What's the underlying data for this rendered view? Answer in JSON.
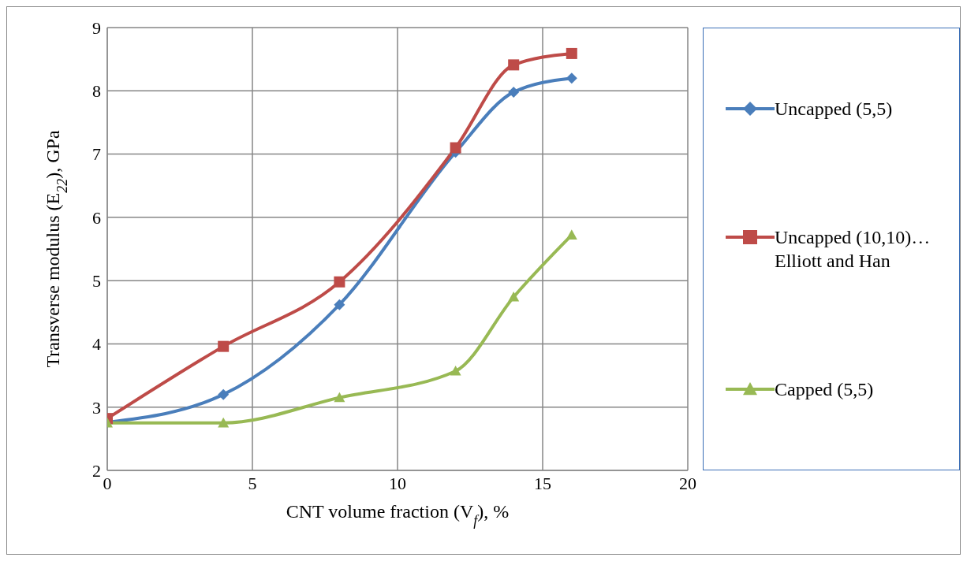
{
  "chart_data": {
    "type": "line",
    "xlabel": "CNT volume fraction (V$_{f}$), %",
    "ylabel": "Transverse modulus (E$_{22}$), GPa",
    "x": [
      0,
      4,
      8,
      12,
      14,
      16
    ],
    "xlim": [
      0,
      20
    ],
    "xticks": [
      0,
      5,
      10,
      15,
      20
    ],
    "ylim": [
      2,
      9
    ],
    "yticks": [
      2,
      3,
      4,
      5,
      6,
      7,
      8,
      9
    ],
    "grid": true,
    "legend": "right",
    "line_style": "solid",
    "series": [
      {
        "name": "Uncapped (5,5)",
        "color": "#4a7ebb",
        "marker": "diamond",
        "values": [
          2.76,
          3.2,
          4.62,
          7.03,
          7.98,
          8.2
        ]
      },
      {
        "name": "Uncapped (10,10)…Elliott and Han",
        "color": "#be4b48",
        "marker": "square",
        "values": [
          2.82,
          3.96,
          4.98,
          7.1,
          8.41,
          8.59
        ]
      },
      {
        "name": "Capped (5,5)",
        "color": "#98b954",
        "marker": "triangle",
        "values": [
          2.75,
          2.75,
          3.15,
          3.57,
          4.74,
          5.72
        ]
      }
    ]
  }
}
